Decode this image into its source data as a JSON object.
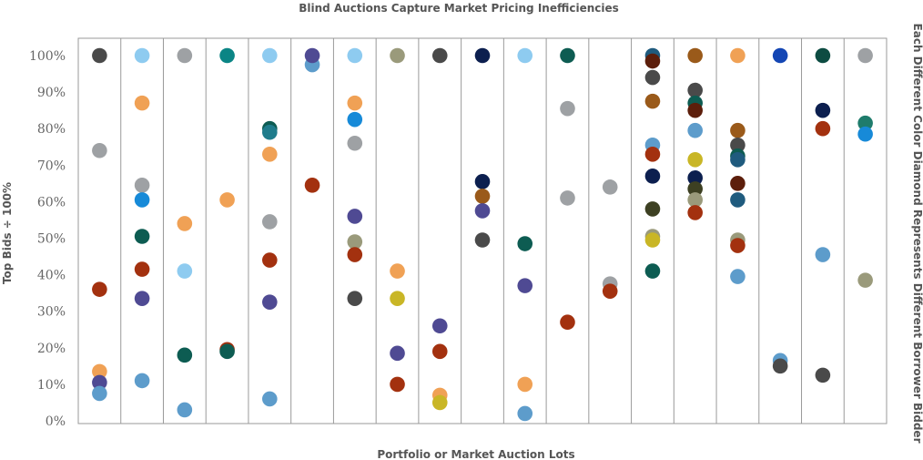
{
  "chart_data": {
    "type": "scatter",
    "title": "Blind Auctions Capture Market Pricing Inefficiencies",
    "xlabel": "Portfolio or Market Auction Lots",
    "ylabel": "Top Bids ÷ 100%",
    "right_label": "Each Different Color Diamond Represents Different Borrower Bidder",
    "ylim": [
      0,
      100
    ],
    "yticks": [
      "0%",
      "10%",
      "20%",
      "30%",
      "40%",
      "50%",
      "60%",
      "70%",
      "80%",
      "90%",
      "100%"
    ],
    "grid": "vertical column separators",
    "lot_count": 19,
    "points": [
      {
        "lot": 1,
        "y": 100,
        "color": "#4a4a4a"
      },
      {
        "lot": 1,
        "y": 74,
        "color": "#9ea1a4"
      },
      {
        "lot": 1,
        "y": 36,
        "color": "#a3310f"
      },
      {
        "lot": 1,
        "y": 13.5,
        "color": "#f0a155"
      },
      {
        "lot": 1,
        "y": 10.5,
        "color": "#4f4a93"
      },
      {
        "lot": 1,
        "y": 7.5,
        "color": "#5d9ccb"
      },
      {
        "lot": 2,
        "y": 100,
        "color": "#8ecbf0"
      },
      {
        "lot": 2,
        "y": 87,
        "color": "#f0a155"
      },
      {
        "lot": 2,
        "y": 64.5,
        "color": "#9ea1a4"
      },
      {
        "lot": 2,
        "y": 60.5,
        "color": "#178ad8"
      },
      {
        "lot": 2,
        "y": 50.5,
        "color": "#0d5c52"
      },
      {
        "lot": 2,
        "y": 41.5,
        "color": "#a3310f"
      },
      {
        "lot": 2,
        "y": 33.5,
        "color": "#4f4a93"
      },
      {
        "lot": 2,
        "y": 11,
        "color": "#5d9ccb"
      },
      {
        "lot": 3,
        "y": 100,
        "color": "#9ea1a4"
      },
      {
        "lot": 3,
        "y": 54,
        "color": "#f0a155"
      },
      {
        "lot": 3,
        "y": 41,
        "color": "#8ecbf0"
      },
      {
        "lot": 3,
        "y": 18,
        "color": "#0d5c52"
      },
      {
        "lot": 3,
        "y": 3,
        "color": "#5d9ccb"
      },
      {
        "lot": 4,
        "y": 100,
        "color": "#0b8585"
      },
      {
        "lot": 4,
        "y": 60.5,
        "color": "#f0a155"
      },
      {
        "lot": 4,
        "y": 19.5,
        "color": "#a3310f"
      },
      {
        "lot": 4,
        "y": 19,
        "color": "#0d5c52"
      },
      {
        "lot": 5,
        "y": 100,
        "color": "#8ecbf0"
      },
      {
        "lot": 5,
        "y": 80,
        "color": "#0d5c52"
      },
      {
        "lot": 5,
        "y": 79,
        "color": "#1f7c8c"
      },
      {
        "lot": 5,
        "y": 73,
        "color": "#f0a155"
      },
      {
        "lot": 5,
        "y": 54.5,
        "color": "#9ea1a4"
      },
      {
        "lot": 5,
        "y": 44,
        "color": "#a3310f"
      },
      {
        "lot": 5,
        "y": 32.5,
        "color": "#4f4a93"
      },
      {
        "lot": 5,
        "y": 6,
        "color": "#5d9ccb"
      },
      {
        "lot": 6,
        "y": 97.5,
        "color": "#5d9ccb"
      },
      {
        "lot": 6,
        "y": 100,
        "color": "#4f4a93"
      },
      {
        "lot": 6,
        "y": 64.5,
        "color": "#a3310f"
      },
      {
        "lot": 7,
        "y": 100,
        "color": "#8ecbf0"
      },
      {
        "lot": 7,
        "y": 87,
        "color": "#f0a155"
      },
      {
        "lot": 7,
        "y": 82.5,
        "color": "#178ad8"
      },
      {
        "lot": 7,
        "y": 76,
        "color": "#9ea1a4"
      },
      {
        "lot": 7,
        "y": 56,
        "color": "#4f4a93"
      },
      {
        "lot": 7,
        "y": 49,
        "color": "#9a9a7b"
      },
      {
        "lot": 7,
        "y": 45.5,
        "color": "#a3310f"
      },
      {
        "lot": 7,
        "y": 33.5,
        "color": "#4a4a4a"
      },
      {
        "lot": 8,
        "y": 100,
        "color": "#9a9a7b"
      },
      {
        "lot": 8,
        "y": 41,
        "color": "#f0a155"
      },
      {
        "lot": 8,
        "y": 33.5,
        "color": "#c9b626"
      },
      {
        "lot": 8,
        "y": 18.5,
        "color": "#4f4a93"
      },
      {
        "lot": 8,
        "y": 10,
        "color": "#a3310f"
      },
      {
        "lot": 9,
        "y": 100,
        "color": "#4a4a4a"
      },
      {
        "lot": 9,
        "y": 26,
        "color": "#4f4a93"
      },
      {
        "lot": 9,
        "y": 19,
        "color": "#a3310f"
      },
      {
        "lot": 9,
        "y": 7,
        "color": "#f0a155"
      },
      {
        "lot": 9,
        "y": 5,
        "color": "#c9b626"
      },
      {
        "lot": 10,
        "y": 100,
        "color": "#0c1f4f"
      },
      {
        "lot": 10,
        "y": 65.5,
        "color": "#0c1f4f"
      },
      {
        "lot": 10,
        "y": 61.5,
        "color": "#9a5a1a"
      },
      {
        "lot": 10,
        "y": 57.5,
        "color": "#4f4a93"
      },
      {
        "lot": 10,
        "y": 49.5,
        "color": "#4a4a4a"
      },
      {
        "lot": 11,
        "y": 100,
        "color": "#8ecbf0"
      },
      {
        "lot": 11,
        "y": 48.5,
        "color": "#0d5c52"
      },
      {
        "lot": 11,
        "y": 37,
        "color": "#4f4a93"
      },
      {
        "lot": 11,
        "y": 10,
        "color": "#f0a155"
      },
      {
        "lot": 11,
        "y": 2,
        "color": "#5d9ccb"
      },
      {
        "lot": 12,
        "y": 100,
        "color": "#0d5c52"
      },
      {
        "lot": 12,
        "y": 85.5,
        "color": "#9ea1a4"
      },
      {
        "lot": 12,
        "y": 61,
        "color": "#9ea1a4"
      },
      {
        "lot": 12,
        "y": 27,
        "color": "#a3310f"
      },
      {
        "lot": 13,
        "y": 64,
        "color": "#9ea1a4"
      },
      {
        "lot": 13,
        "y": 37.5,
        "color": "#9ea1a4"
      },
      {
        "lot": 13,
        "y": 35.5,
        "color": "#a3310f"
      },
      {
        "lot": 14,
        "y": 100,
        "color": "#1f5b7e"
      },
      {
        "lot": 14,
        "y": 98.5,
        "color": "#5c1e0b"
      },
      {
        "lot": 14,
        "y": 94,
        "color": "#4a4a4a"
      },
      {
        "lot": 14,
        "y": 87.5,
        "color": "#9a5a1a"
      },
      {
        "lot": 14,
        "y": 75.5,
        "color": "#5d9ccb"
      },
      {
        "lot": 14,
        "y": 73,
        "color": "#a3310f"
      },
      {
        "lot": 14,
        "y": 67,
        "color": "#0c1f4f"
      },
      {
        "lot": 14,
        "y": 58,
        "color": "#3d4022"
      },
      {
        "lot": 14,
        "y": 50.5,
        "color": "#9a9a7b"
      },
      {
        "lot": 14,
        "y": 49.5,
        "color": "#c9b626"
      },
      {
        "lot": 14,
        "y": 41,
        "color": "#0d5c52"
      },
      {
        "lot": 15,
        "y": 100,
        "color": "#9a5a1a"
      },
      {
        "lot": 15,
        "y": 90.5,
        "color": "#4a4a4a"
      },
      {
        "lot": 15,
        "y": 87,
        "color": "#0d5c52"
      },
      {
        "lot": 15,
        "y": 85,
        "color": "#5c1e0b"
      },
      {
        "lot": 15,
        "y": 79.5,
        "color": "#5d9ccb"
      },
      {
        "lot": 15,
        "y": 71.5,
        "color": "#c9b626"
      },
      {
        "lot": 15,
        "y": 66.5,
        "color": "#0c1f4f"
      },
      {
        "lot": 15,
        "y": 63.5,
        "color": "#3d4022"
      },
      {
        "lot": 15,
        "y": 60.5,
        "color": "#9a9a7b"
      },
      {
        "lot": 15,
        "y": 57,
        "color": "#a3310f"
      },
      {
        "lot": 16,
        "y": 100,
        "color": "#f0a155"
      },
      {
        "lot": 16,
        "y": 79.5,
        "color": "#9a5a1a"
      },
      {
        "lot": 16,
        "y": 75.5,
        "color": "#4a4a4a"
      },
      {
        "lot": 16,
        "y": 72.5,
        "color": "#0d5c52"
      },
      {
        "lot": 16,
        "y": 71.5,
        "color": "#1f5b7e"
      },
      {
        "lot": 16,
        "y": 65,
        "color": "#5c1e0b"
      },
      {
        "lot": 16,
        "y": 60.5,
        "color": "#1f5b7e"
      },
      {
        "lot": 16,
        "y": 49.5,
        "color": "#9a9a7b"
      },
      {
        "lot": 16,
        "y": 48,
        "color": "#a3310f"
      },
      {
        "lot": 16,
        "y": 39.5,
        "color": "#5d9ccb"
      },
      {
        "lot": 17,
        "y": 100,
        "color": "#1446b4"
      },
      {
        "lot": 17,
        "y": 16.5,
        "color": "#5d9ccb"
      },
      {
        "lot": 17,
        "y": 15,
        "color": "#4a4a4a"
      },
      {
        "lot": 18,
        "y": 100,
        "color": "#0d4c42"
      },
      {
        "lot": 18,
        "y": 85,
        "color": "#0c1f4f"
      },
      {
        "lot": 18,
        "y": 80,
        "color": "#a3310f"
      },
      {
        "lot": 18,
        "y": 45.5,
        "color": "#5d9ccb"
      },
      {
        "lot": 18,
        "y": 12.5,
        "color": "#4a4a4a"
      },
      {
        "lot": 19,
        "y": 100,
        "color": "#9ea1a4"
      },
      {
        "lot": 19,
        "y": 81.5,
        "color": "#1f7c6c"
      },
      {
        "lot": 19,
        "y": 78.5,
        "color": "#178ad8"
      },
      {
        "lot": 19,
        "y": 38.5,
        "color": "#9a9a7b"
      }
    ]
  }
}
